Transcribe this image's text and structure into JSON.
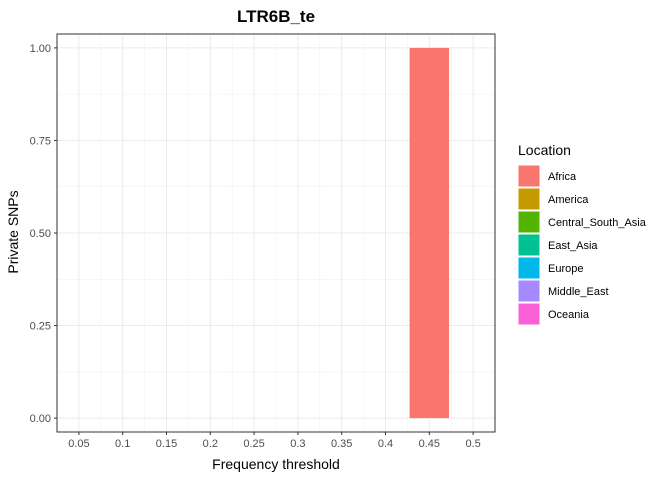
{
  "chart_data": {
    "type": "bar",
    "title": "LTR6B_te",
    "xlabel": "Frequency threshold",
    "ylabel": "Private SNPs",
    "x_ticks": [
      "0.05",
      "0.1",
      "0.15",
      "0.2",
      "0.25",
      "0.3",
      "0.35",
      "0.4",
      "0.45",
      "0.5"
    ],
    "y_ticks": [
      "0.00",
      "0.25",
      "0.50",
      "0.75",
      "1.00"
    ],
    "xlim": [
      0.025,
      0.525
    ],
    "ylim": [
      -0.0375,
      1.0375
    ],
    "bar_width": 0.045,
    "grid": true,
    "legend": {
      "title": "Location",
      "position": "right",
      "entries": [
        {
          "name": "Africa",
          "color": "#F8766D"
        },
        {
          "name": "America",
          "color": "#C49A00"
        },
        {
          "name": "Central_South_Asia",
          "color": "#53B400"
        },
        {
          "name": "East_Asia",
          "color": "#00C094"
        },
        {
          "name": "Europe",
          "color": "#00B6EB"
        },
        {
          "name": "Middle_East",
          "color": "#A58AFF"
        },
        {
          "name": "Oceania",
          "color": "#FB61D7"
        }
      ]
    },
    "series": [
      {
        "name": "Africa",
        "color": "#F8766D",
        "x": [
          0.45
        ],
        "values": [
          1.0
        ]
      }
    ]
  }
}
